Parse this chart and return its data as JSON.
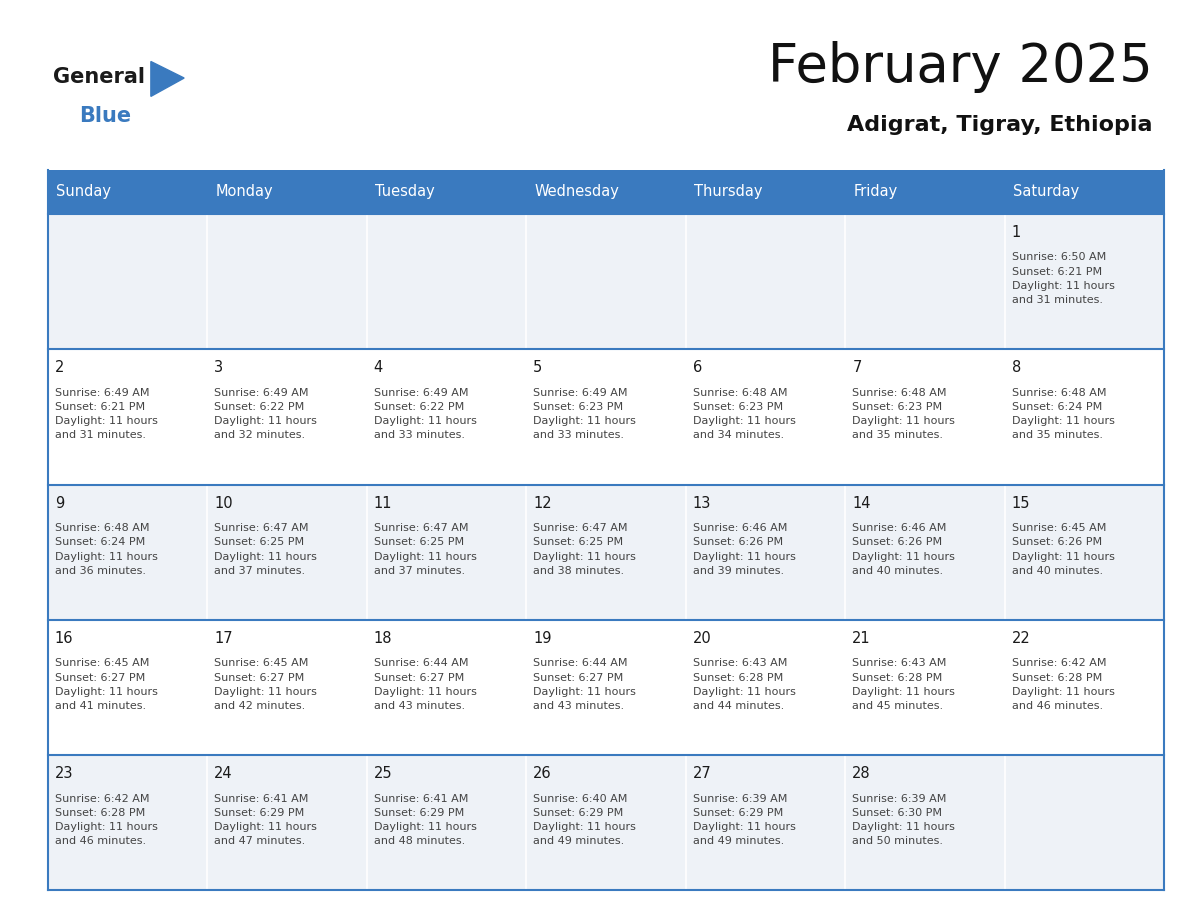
{
  "title": "February 2025",
  "subtitle": "Adigrat, Tigray, Ethiopia",
  "header_color": "#3a7abf",
  "header_text_color": "#ffffff",
  "cell_bg_even": "#eef2f7",
  "cell_bg_odd": "#ffffff",
  "row_border_color": "#3a7abf",
  "col_border_color": "#ffffff",
  "day_text_color": "#1a1a1a",
  "info_text_color": "#444444",
  "day_names": [
    "Sunday",
    "Monday",
    "Tuesday",
    "Wednesday",
    "Thursday",
    "Friday",
    "Saturday"
  ],
  "days": [
    {
      "day": 1,
      "col": 6,
      "row": 0,
      "sunrise": "6:50 AM",
      "sunset": "6:21 PM",
      "daylight": "11 hours",
      "daylight2": "and 31 minutes."
    },
    {
      "day": 2,
      "col": 0,
      "row": 1,
      "sunrise": "6:49 AM",
      "sunset": "6:21 PM",
      "daylight": "11 hours",
      "daylight2": "and 31 minutes."
    },
    {
      "day": 3,
      "col": 1,
      "row": 1,
      "sunrise": "6:49 AM",
      "sunset": "6:22 PM",
      "daylight": "11 hours",
      "daylight2": "and 32 minutes."
    },
    {
      "day": 4,
      "col": 2,
      "row": 1,
      "sunrise": "6:49 AM",
      "sunset": "6:22 PM",
      "daylight": "11 hours",
      "daylight2": "and 33 minutes."
    },
    {
      "day": 5,
      "col": 3,
      "row": 1,
      "sunrise": "6:49 AM",
      "sunset": "6:23 PM",
      "daylight": "11 hours",
      "daylight2": "and 33 minutes."
    },
    {
      "day": 6,
      "col": 4,
      "row": 1,
      "sunrise": "6:48 AM",
      "sunset": "6:23 PM",
      "daylight": "11 hours",
      "daylight2": "and 34 minutes."
    },
    {
      "day": 7,
      "col": 5,
      "row": 1,
      "sunrise": "6:48 AM",
      "sunset": "6:23 PM",
      "daylight": "11 hours",
      "daylight2": "and 35 minutes."
    },
    {
      "day": 8,
      "col": 6,
      "row": 1,
      "sunrise": "6:48 AM",
      "sunset": "6:24 PM",
      "daylight": "11 hours",
      "daylight2": "and 35 minutes."
    },
    {
      "day": 9,
      "col": 0,
      "row": 2,
      "sunrise": "6:48 AM",
      "sunset": "6:24 PM",
      "daylight": "11 hours",
      "daylight2": "and 36 minutes."
    },
    {
      "day": 10,
      "col": 1,
      "row": 2,
      "sunrise": "6:47 AM",
      "sunset": "6:25 PM",
      "daylight": "11 hours",
      "daylight2": "and 37 minutes."
    },
    {
      "day": 11,
      "col": 2,
      "row": 2,
      "sunrise": "6:47 AM",
      "sunset": "6:25 PM",
      "daylight": "11 hours",
      "daylight2": "and 37 minutes."
    },
    {
      "day": 12,
      "col": 3,
      "row": 2,
      "sunrise": "6:47 AM",
      "sunset": "6:25 PM",
      "daylight": "11 hours",
      "daylight2": "and 38 minutes."
    },
    {
      "day": 13,
      "col": 4,
      "row": 2,
      "sunrise": "6:46 AM",
      "sunset": "6:26 PM",
      "daylight": "11 hours",
      "daylight2": "and 39 minutes."
    },
    {
      "day": 14,
      "col": 5,
      "row": 2,
      "sunrise": "6:46 AM",
      "sunset": "6:26 PM",
      "daylight": "11 hours",
      "daylight2": "and 40 minutes."
    },
    {
      "day": 15,
      "col": 6,
      "row": 2,
      "sunrise": "6:45 AM",
      "sunset": "6:26 PM",
      "daylight": "11 hours",
      "daylight2": "and 40 minutes."
    },
    {
      "day": 16,
      "col": 0,
      "row": 3,
      "sunrise": "6:45 AM",
      "sunset": "6:27 PM",
      "daylight": "11 hours",
      "daylight2": "and 41 minutes."
    },
    {
      "day": 17,
      "col": 1,
      "row": 3,
      "sunrise": "6:45 AM",
      "sunset": "6:27 PM",
      "daylight": "11 hours",
      "daylight2": "and 42 minutes."
    },
    {
      "day": 18,
      "col": 2,
      "row": 3,
      "sunrise": "6:44 AM",
      "sunset": "6:27 PM",
      "daylight": "11 hours",
      "daylight2": "and 43 minutes."
    },
    {
      "day": 19,
      "col": 3,
      "row": 3,
      "sunrise": "6:44 AM",
      "sunset": "6:27 PM",
      "daylight": "11 hours",
      "daylight2": "and 43 minutes."
    },
    {
      "day": 20,
      "col": 4,
      "row": 3,
      "sunrise": "6:43 AM",
      "sunset": "6:28 PM",
      "daylight": "11 hours",
      "daylight2": "and 44 minutes."
    },
    {
      "day": 21,
      "col": 5,
      "row": 3,
      "sunrise": "6:43 AM",
      "sunset": "6:28 PM",
      "daylight": "11 hours",
      "daylight2": "and 45 minutes."
    },
    {
      "day": 22,
      "col": 6,
      "row": 3,
      "sunrise": "6:42 AM",
      "sunset": "6:28 PM",
      "daylight": "11 hours",
      "daylight2": "and 46 minutes."
    },
    {
      "day": 23,
      "col": 0,
      "row": 4,
      "sunrise": "6:42 AM",
      "sunset": "6:28 PM",
      "daylight": "11 hours",
      "daylight2": "and 46 minutes."
    },
    {
      "day": 24,
      "col": 1,
      "row": 4,
      "sunrise": "6:41 AM",
      "sunset": "6:29 PM",
      "daylight": "11 hours",
      "daylight2": "and 47 minutes."
    },
    {
      "day": 25,
      "col": 2,
      "row": 4,
      "sunrise": "6:41 AM",
      "sunset": "6:29 PM",
      "daylight": "11 hours",
      "daylight2": "and 48 minutes."
    },
    {
      "day": 26,
      "col": 3,
      "row": 4,
      "sunrise": "6:40 AM",
      "sunset": "6:29 PM",
      "daylight": "11 hours",
      "daylight2": "and 49 minutes."
    },
    {
      "day": 27,
      "col": 4,
      "row": 4,
      "sunrise": "6:39 AM",
      "sunset": "6:29 PM",
      "daylight": "11 hours",
      "daylight2": "and 49 minutes."
    },
    {
      "day": 28,
      "col": 5,
      "row": 4,
      "sunrise": "6:39 AM",
      "sunset": "6:30 PM",
      "daylight": "11 hours",
      "daylight2": "and 50 minutes."
    }
  ],
  "num_rows": 5,
  "num_cols": 7,
  "fig_width": 11.88,
  "fig_height": 9.18
}
